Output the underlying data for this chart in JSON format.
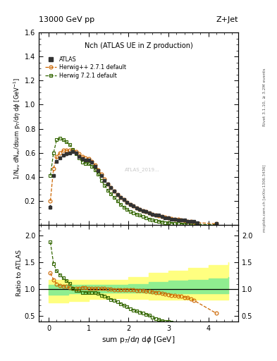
{
  "title_left": "13000 GeV pp",
  "title_right": "Z+Jet",
  "plot_title": "Nch (ATLAS UE in Z production)",
  "xlabel": "sum p$_T$/d$\\eta$ d$\\phi$ [GeV]",
  "ylabel_main": "1/N$_{ev}$ dN$_{ev}$/dsum p$_T$/d$\\eta$ d$\\phi$ [GeV$^{-1}$]",
  "ylabel_ratio": "Ratio to ATLAS",
  "right_label1": "Rivet 3.1.10, ≥ 3.2M events",
  "right_label2": "mcplots.cern.ch [arXiv:1306.3436]",
  "watermark": "ATLAS_2019...",
  "xlim": [
    -0.25,
    4.75
  ],
  "ylim_main": [
    0.0,
    1.6
  ],
  "ylim_ratio": [
    0.4,
    2.2
  ],
  "yticks_main": [
    0.2,
    0.4,
    0.6,
    0.8,
    1.0,
    1.2,
    1.4,
    1.6
  ],
  "yticks_ratio": [
    0.5,
    1.0,
    1.5,
    2.0
  ],
  "xticks": [
    0,
    1,
    2,
    3,
    4
  ],
  "atlas_x": [
    0.04,
    0.12,
    0.2,
    0.28,
    0.36,
    0.44,
    0.52,
    0.6,
    0.68,
    0.76,
    0.84,
    0.92,
    1.0,
    1.08,
    1.16,
    1.24,
    1.32,
    1.4,
    1.48,
    1.56,
    1.64,
    1.72,
    1.8,
    1.88,
    1.96,
    2.04,
    2.12,
    2.2,
    2.28,
    2.36,
    2.44,
    2.52,
    2.6,
    2.68,
    2.76,
    2.84,
    2.92,
    3.0,
    3.08,
    3.16,
    3.24,
    3.32,
    3.4,
    3.48,
    3.56,
    3.64,
    3.72,
    4.2
  ],
  "atlas_y": [
    0.15,
    0.41,
    0.53,
    0.56,
    0.58,
    0.59,
    0.6,
    0.61,
    0.6,
    0.57,
    0.55,
    0.54,
    0.54,
    0.52,
    0.49,
    0.45,
    0.41,
    0.37,
    0.34,
    0.31,
    0.28,
    0.25,
    0.23,
    0.21,
    0.19,
    0.17,
    0.16,
    0.14,
    0.13,
    0.12,
    0.11,
    0.1,
    0.09,
    0.08,
    0.08,
    0.07,
    0.06,
    0.06,
    0.05,
    0.05,
    0.04,
    0.04,
    0.04,
    0.03,
    0.03,
    0.03,
    0.02,
    0.01
  ],
  "atlas_yerr": [
    0.015,
    0.012,
    0.01,
    0.009,
    0.008,
    0.008,
    0.008,
    0.008,
    0.008,
    0.008,
    0.008,
    0.008,
    0.008,
    0.007,
    0.007,
    0.007,
    0.007,
    0.006,
    0.006,
    0.006,
    0.005,
    0.005,
    0.005,
    0.004,
    0.004,
    0.004,
    0.004,
    0.003,
    0.003,
    0.003,
    0.003,
    0.002,
    0.002,
    0.002,
    0.002,
    0.002,
    0.002,
    0.001,
    0.001,
    0.001,
    0.001,
    0.001,
    0.001,
    0.001,
    0.001,
    0.001,
    0.001,
    0.001
  ],
  "herwig1_x": [
    0.04,
    0.12,
    0.2,
    0.28,
    0.36,
    0.44,
    0.52,
    0.6,
    0.68,
    0.76,
    0.84,
    0.92,
    1.0,
    1.08,
    1.16,
    1.24,
    1.32,
    1.4,
    1.48,
    1.56,
    1.64,
    1.72,
    1.8,
    1.88,
    1.96,
    2.04,
    2.12,
    2.2,
    2.28,
    2.36,
    2.44,
    2.52,
    2.6,
    2.68,
    2.76,
    2.84,
    2.92,
    3.0,
    3.08,
    3.16,
    3.24,
    3.32,
    3.4,
    3.48,
    3.56,
    3.64,
    4.2
  ],
  "herwig1_y": [
    0.2,
    0.47,
    0.57,
    0.6,
    0.62,
    0.62,
    0.62,
    0.62,
    0.61,
    0.59,
    0.57,
    0.56,
    0.55,
    0.53,
    0.5,
    0.46,
    0.42,
    0.38,
    0.34,
    0.31,
    0.28,
    0.25,
    0.23,
    0.21,
    0.19,
    0.17,
    0.16,
    0.14,
    0.13,
    0.12,
    0.11,
    0.1,
    0.09,
    0.085,
    0.075,
    0.07,
    0.065,
    0.06,
    0.055,
    0.05,
    0.045,
    0.04,
    0.035,
    0.03,
    0.028,
    0.022,
    0.01
  ],
  "herwig1_ratio": [
    1.3,
    1.18,
    1.1,
    1.07,
    1.06,
    1.05,
    1.03,
    1.02,
    1.01,
    1.02,
    1.03,
    1.03,
    1.01,
    1.01,
    1.01,
    1.01,
    1.01,
    1.01,
    1.0,
    1.0,
    0.99,
    0.99,
    0.99,
    0.99,
    0.99,
    0.99,
    0.99,
    0.98,
    0.97,
    0.97,
    0.96,
    0.96,
    0.95,
    0.94,
    0.93,
    0.92,
    0.91,
    0.9,
    0.89,
    0.88,
    0.87,
    0.87,
    0.85,
    0.84,
    0.82,
    0.79,
    0.55
  ],
  "herwig2_x": [
    0.04,
    0.12,
    0.2,
    0.28,
    0.36,
    0.44,
    0.52,
    0.6,
    0.68,
    0.76,
    0.84,
    0.92,
    1.0,
    1.08,
    1.16,
    1.24,
    1.32,
    1.4,
    1.48,
    1.56,
    1.64,
    1.72,
    1.8,
    1.88,
    1.96,
    2.04,
    2.12,
    2.2,
    2.28,
    2.36,
    2.44,
    2.52,
    2.6,
    2.68,
    2.76,
    2.84,
    2.92,
    3.0,
    3.08,
    3.16,
    3.24,
    3.32,
    3.4,
    3.48,
    3.56,
    3.64,
    4.2
  ],
  "herwig2_y": [
    0.41,
    0.6,
    0.71,
    0.72,
    0.71,
    0.69,
    0.67,
    0.63,
    0.59,
    0.56,
    0.52,
    0.51,
    0.51,
    0.49,
    0.46,
    0.42,
    0.37,
    0.33,
    0.29,
    0.26,
    0.23,
    0.2,
    0.17,
    0.15,
    0.13,
    0.11,
    0.1,
    0.09,
    0.08,
    0.07,
    0.06,
    0.05,
    0.04,
    0.035,
    0.03,
    0.025,
    0.02,
    0.018,
    0.015,
    0.012,
    0.01,
    0.009,
    0.008,
    0.007,
    0.006,
    0.005,
    0.003
  ],
  "herwig2_ratio": [
    1.88,
    1.48,
    1.34,
    1.27,
    1.21,
    1.16,
    1.11,
    1.02,
    0.97,
    0.97,
    0.94,
    0.94,
    0.93,
    0.93,
    0.93,
    0.92,
    0.89,
    0.87,
    0.84,
    0.81,
    0.79,
    0.76,
    0.73,
    0.7,
    0.67,
    0.63,
    0.61,
    0.59,
    0.57,
    0.55,
    0.53,
    0.51,
    0.47,
    0.45,
    0.43,
    0.41,
    0.4,
    0.39,
    0.38,
    0.37,
    0.36,
    0.35,
    0.34,
    0.33,
    0.32,
    0.31,
    0.29
  ],
  "band_yellow_x": [
    0.0,
    0.5,
    1.0,
    1.5,
    2.0,
    2.5,
    3.0,
    3.5,
    4.0,
    4.5
  ],
  "band_yellow_lo": [
    0.75,
    0.78,
    0.82,
    0.83,
    0.82,
    0.8,
    0.8,
    0.8,
    0.8,
    0.8
  ],
  "band_yellow_hi": [
    1.18,
    1.18,
    1.18,
    1.18,
    1.22,
    1.3,
    1.35,
    1.4,
    1.45,
    1.5
  ],
  "band_green_x": [
    0.0,
    0.5,
    1.0,
    1.5,
    2.0,
    2.5,
    3.0,
    3.5,
    4.0,
    4.5
  ],
  "band_green_lo": [
    0.9,
    0.92,
    0.93,
    0.94,
    0.94,
    0.92,
    0.92,
    0.92,
    0.92,
    0.92
  ],
  "band_green_hi": [
    1.08,
    1.08,
    1.08,
    1.08,
    1.1,
    1.14,
    1.16,
    1.18,
    1.2,
    1.22
  ],
  "atlas_color": "#333333",
  "herwig1_color": "#cc6600",
  "herwig2_color": "#336600",
  "band_green_inner": "#90ee90",
  "band_yellow_outer": "#ffff80",
  "background": "#ffffff"
}
